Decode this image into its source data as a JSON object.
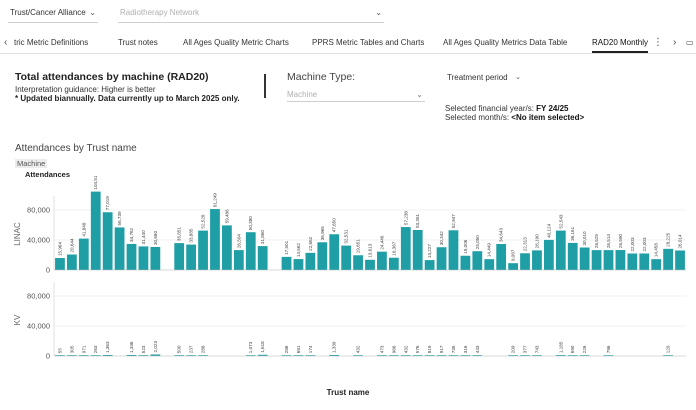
{
  "filters": {
    "trust": {
      "value": "Trust/Cancer Alliance"
    },
    "network": {
      "placeholder": "Radiotherapy Network"
    }
  },
  "tabs": {
    "prev_arrow": "‹",
    "items": [
      {
        "label": "tric Metric Definitions"
      },
      {
        "label": "Trust notes"
      },
      {
        "label": "All Ages Quality Metric Charts"
      },
      {
        "label": "PPRS Metric Tables and Charts"
      },
      {
        "label": "All Ages Quality Metrics Data Table"
      },
      {
        "label": "RAD20 Monthly"
      }
    ],
    "more": "⋮",
    "next_arrow": "›"
  },
  "header": {
    "title": "Total attendances by machine (RAD20)",
    "guidance": "Interpretation guidance: Higher is better",
    "note": "* Updated biannually. Data currently up to March 2025  only."
  },
  "machine_type": {
    "label": "Machine Type:",
    "placeholder": "Machine"
  },
  "period": {
    "value": "Treatment period"
  },
  "selection": {
    "fy_label": "Selected financial year/s: ",
    "fy_value": "FY 24/25",
    "month_label": "Selected month/s: ",
    "month_value": "<No item selected>"
  },
  "legend": {
    "header": "Machine",
    "subheader": "Attendances"
  },
  "chart_data": {
    "type": "bar",
    "title": "Attendances by Trust name",
    "xlabel": "Trust name",
    "bar_color": "#1f9ea6",
    "panels": [
      {
        "name": "LINAC",
        "ylim": [
          0,
          110000
        ],
        "yticks": [
          0,
          40000,
          80000
        ],
        "values": [
          15964,
          20644,
          41848,
          104514,
          77019,
          56739,
          34762,
          31440,
          30680,
          0,
          35851,
          33885,
          52528,
          81249,
          59486,
          26504,
          50380,
          31860,
          0,
          17501,
          14562,
          22862,
          36965,
          47650,
          32531,
          19651,
          13613,
          24446,
          16367,
          57238,
          53351,
          13227,
          30342,
          52947,
          19006,
          25050,
          14449,
          34643,
          9087,
          22313,
          26190,
          40124,
          52543,
          36161,
          30010,
          26525,
          26514,
          26590,
          22003,
          22003,
          14458,
          28225,
          26014
        ],
        "labels": [
          "15,964",
          "20,644",
          "41,848",
          "104,514",
          "77,019",
          "56,739",
          "34,762",
          "31,440",
          "30,680",
          "",
          "35,851",
          "33,885",
          "52,528",
          "81,249",
          "59,486",
          "26,504",
          "50,380",
          "31,860",
          "",
          "17,501",
          "14,562",
          "22,862",
          "36,965",
          "47,650",
          "32,531",
          "19,651",
          "13,613",
          "24,446",
          "16,367",
          "57,238",
          "53,351",
          "13,227",
          "30,342",
          "52,947",
          "19,006",
          "25,050",
          "14,449",
          "34,643",
          "9,087",
          "22,313",
          "26,190",
          "40,124",
          "52,543",
          "36,161",
          "30,010",
          "26,525",
          "26,514",
          "26,590",
          "22,003",
          "22,003",
          "14,458",
          "28,225",
          "26,014"
        ]
      },
      {
        "name": "KV",
        "ylim": [
          0,
          110000
        ],
        "yticks": [
          0,
          40000,
          80000
        ],
        "values": [
          55,
          305,
          971,
          263,
          1363,
          0,
          1336,
          523,
          2023,
          0,
          500,
          237,
          288,
          0,
          0,
          0,
          1073,
          1618,
          0,
          286,
          681,
          174,
          0,
          1339,
          0,
          432,
          0,
          473,
          966,
          432,
          576,
          819,
          917,
          735,
          316,
          443,
          0,
          0,
          209,
          377,
          743,
          0,
          1185,
          690,
          226,
          0,
          796,
          0,
          0,
          0,
          0,
          120,
          0
        ],
        "labels": [
          "55",
          "305",
          "971",
          "263",
          "1,363",
          "",
          "1,336",
          "523",
          "2,023",
          "",
          "500",
          "237",
          "288",
          "",
          "",
          "",
          "1,073",
          "1,618",
          "",
          "286",
          "681",
          "174",
          "",
          "1,339",
          "",
          "432",
          "",
          "473",
          "966",
          "432",
          "576",
          "819",
          "917",
          "735",
          "316",
          "443",
          "",
          "",
          "209",
          "377",
          "743",
          "",
          "1,185",
          "690",
          "226",
          "",
          "796",
          "",
          "",
          "",
          "",
          "120",
          ""
        ]
      }
    ]
  }
}
